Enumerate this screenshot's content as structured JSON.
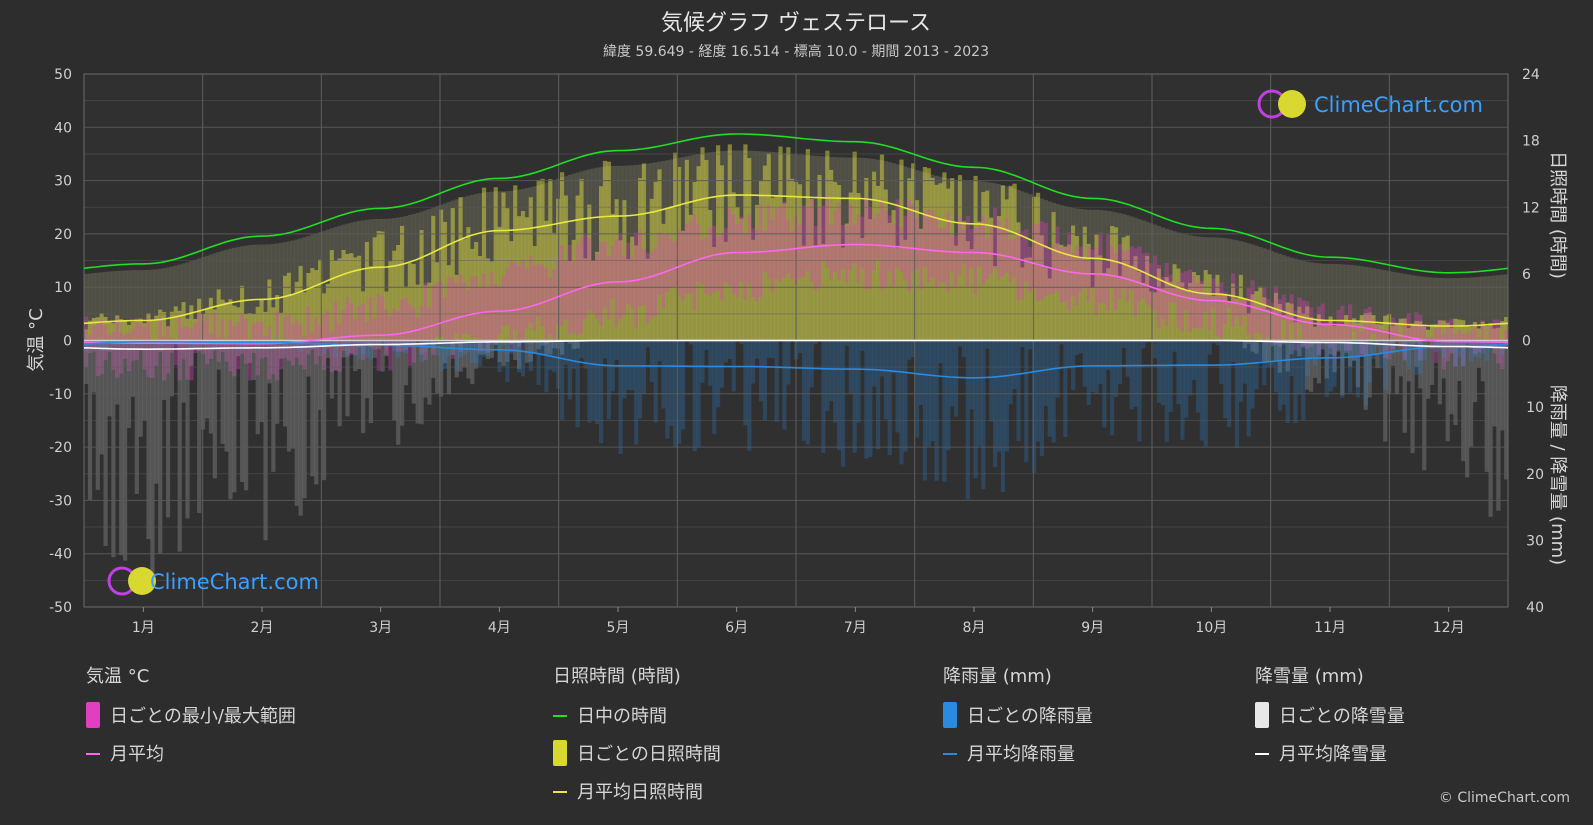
{
  "header": {
    "title": "気候グラフ ヴェステロース",
    "subtitle": "緯度 59.649 - 経度 16.514 - 標高 10.0 - 期間 2013 - 2023"
  },
  "axes": {
    "left_label": "気温 °C",
    "right_top_label": "日照時間 (時間)",
    "right_bottom_label": "降雨量 / 降雪量 (mm)"
  },
  "logo": {
    "text": "ClimeChart.com"
  },
  "copyright": "© ClimeChart.com",
  "legend": {
    "temp": {
      "heading": "気温 °C",
      "range": "日ごとの最小/最大範囲",
      "mean": "月平均"
    },
    "sun": {
      "heading": "日照時間 (時間)",
      "daylight": "日中の時間",
      "daily": "日ごとの日照時間",
      "mean": "月平均日照時間"
    },
    "rain": {
      "heading": "降雨量 (mm)",
      "daily": "日ごとの降雨量",
      "mean": "月平均降雨量"
    },
    "snow": {
      "heading": "降雪量 (mm)",
      "daily": "日ごとの降雪量",
      "mean": "月平均降雪量"
    }
  },
  "colors": {
    "background": "#2d2d2d",
    "daylight": "#22dd22",
    "sunshine": "#e8e840",
    "temp_mean": "#ff66ee",
    "temp_range": "#e040c0",
    "rain": "#2a8ae0",
    "snow": "#ffffff",
    "logo": "#3aa0ff"
  },
  "chart_data": {
    "type": "line",
    "categories": [
      "1月",
      "2月",
      "3月",
      "4月",
      "5月",
      "6月",
      "7月",
      "8月",
      "9月",
      "10月",
      "11月",
      "12月"
    ],
    "y_left": {
      "range": [
        -50,
        50
      ],
      "ticks": [
        -50,
        -40,
        -30,
        -20,
        -10,
        0,
        10,
        20,
        30,
        40,
        50
      ]
    },
    "y_right_sun": {
      "range": [
        0,
        24
      ],
      "ticks": [
        0,
        6,
        12,
        18,
        24
      ]
    },
    "y_right_precip": {
      "range": [
        0,
        40
      ],
      "ticks": [
        10,
        20,
        30,
        40
      ]
    },
    "series": [
      {
        "key": "daylight",
        "axis": "sun",
        "values": [
          6.9,
          9.4,
          11.9,
          14.6,
          17.1,
          18.6,
          17.9,
          15.6,
          12.8,
          10.1,
          7.5,
          6.1
        ]
      },
      {
        "key": "sunshine_mean",
        "axis": "sun",
        "values": [
          1.8,
          3.7,
          6.6,
          9.9,
          11.2,
          13.1,
          12.8,
          10.5,
          7.4,
          4.2,
          1.8,
          1.3
        ]
      },
      {
        "key": "temp_mean",
        "axis": "temp",
        "values": [
          -0.5,
          -0.6,
          1.0,
          5.5,
          11.0,
          16.5,
          18.0,
          16.5,
          12.5,
          7.5,
          3.0,
          -0.2
        ]
      },
      {
        "key": "rain_mean",
        "axis": "precip",
        "values": [
          0.2,
          0.3,
          0.7,
          1.4,
          3.8,
          3.9,
          4.3,
          5.6,
          3.8,
          3.7,
          2.6,
          0.9
        ]
      },
      {
        "key": "snow_mean",
        "axis": "precip",
        "values": [
          1.3,
          1.1,
          0.6,
          0.2,
          0.0,
          0.0,
          0.0,
          0.0,
          0.0,
          0.0,
          0.3,
          0.9
        ]
      },
      {
        "key": "temp_max_daily_avg",
        "axis": "temp",
        "values": [
          2.0,
          2.5,
          6.0,
          12.0,
          18.0,
          22.5,
          24.5,
          22.5,
          17.5,
          10.5,
          5.0,
          2.0
        ]
      },
      {
        "key": "temp_min_daily_avg",
        "axis": "temp",
        "values": [
          -4.5,
          -5.0,
          -3.0,
          0.5,
          5.0,
          10.0,
          12.5,
          11.5,
          7.5,
          3.5,
          0.0,
          -3.0
        ]
      }
    ]
  }
}
